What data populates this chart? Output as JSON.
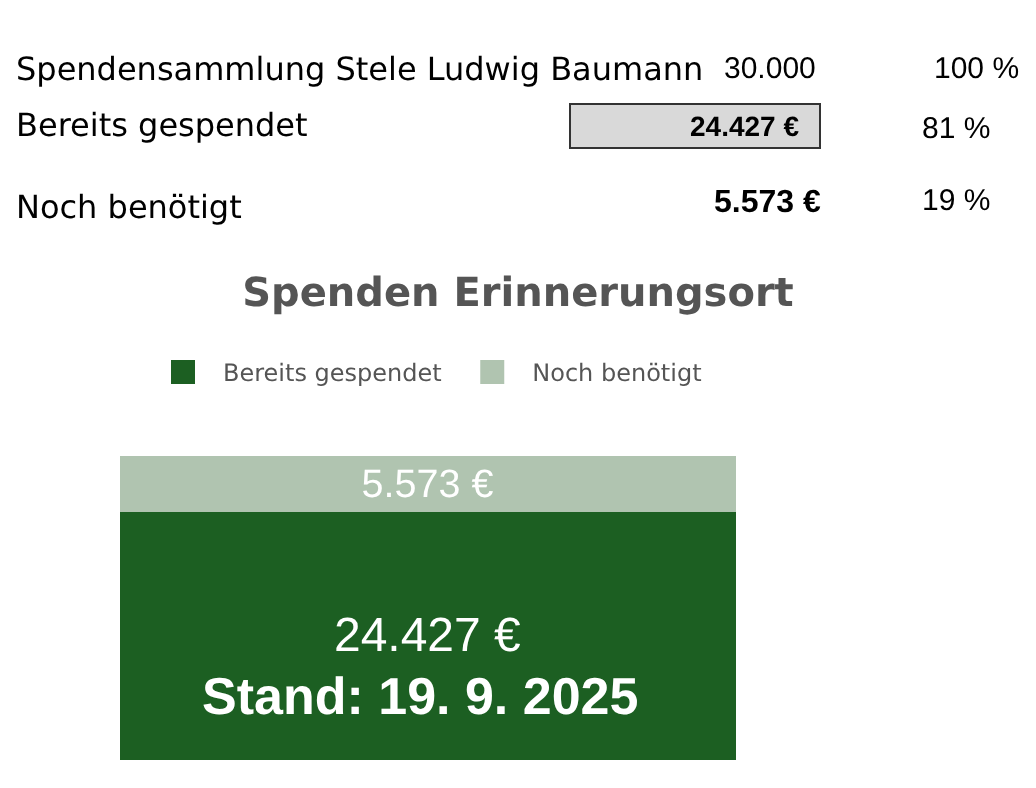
{
  "chart_data": {
    "type": "bar",
    "title": "Spenden Erinnerungsort",
    "stacked": true,
    "legend": "top",
    "tick_labels": false,
    "categories": [
      null
    ],
    "series": [
      {
        "name": "Bereits gespendet",
        "color": "#1c5f22",
        "values": [
          24427
        ],
        "value_labels": [
          "24.427 €"
        ]
      },
      {
        "name": "Noch benötigt",
        "color": "#b0c4b0",
        "values": [
          5573
        ],
        "value_labels": [
          "5.573 €"
        ]
      }
    ],
    "annotations": [
      "Spendensammlung Stele Ludwig Baumann",
      "30.000",
      "100 %",
      "Bereits gespendet",
      "24.427 €",
      "81 %",
      "Noch benötigt",
      "5.573 €",
      "19 %",
      "Stand: 19. 9. 2025"
    ]
  }
}
